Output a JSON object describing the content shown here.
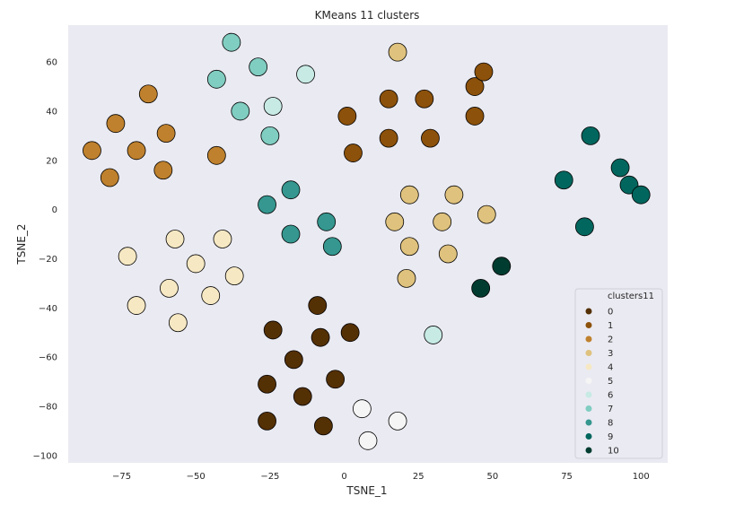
{
  "chart_data": {
    "type": "scatter",
    "title": "KMeans 11 clusters",
    "xlabel": "TSNE_1",
    "ylabel": "TSNE_2",
    "xlim": [
      -93,
      109
    ],
    "ylim": [
      -103,
      75
    ],
    "xticks": [
      -75,
      -50,
      -25,
      0,
      25,
      50,
      75,
      100
    ],
    "yticks": [
      -100,
      -80,
      -60,
      -40,
      -20,
      0,
      20,
      40,
      60
    ],
    "xtick_labels": [
      "−75",
      "−50",
      "−25",
      "0",
      "25",
      "50",
      "75",
      "100"
    ],
    "ytick_labels": [
      "−100",
      "−80",
      "−60",
      "−40",
      "−20",
      "0",
      "20",
      "40",
      "60"
    ],
    "grid": false,
    "legend": {
      "title": "clusters11",
      "position": "lower-right",
      "entries": [
        "0",
        "1",
        "2",
        "3",
        "4",
        "5",
        "6",
        "7",
        "8",
        "9",
        "10"
      ]
    },
    "colors": [
      "#543005",
      "#8c510a",
      "#bf812d",
      "#dfc27d",
      "#f6e8c3",
      "#f5f5f5",
      "#c7eae5",
      "#80cdc1",
      "#35978f",
      "#01665e",
      "#003c30"
    ],
    "series": [
      {
        "name": "0",
        "points": [
          [
            -24,
            -49
          ],
          [
            -9,
            -39
          ],
          [
            -8,
            -52
          ],
          [
            2,
            -50
          ],
          [
            -17,
            -61
          ],
          [
            -26,
            -71
          ],
          [
            -14,
            -76
          ],
          [
            -3,
            -69
          ],
          [
            -26,
            -86
          ],
          [
            -7,
            -88
          ]
        ]
      },
      {
        "name": "1",
        "points": [
          [
            1,
            38
          ],
          [
            3,
            23
          ],
          [
            15,
            45
          ],
          [
            27,
            45
          ],
          [
            15,
            29
          ],
          [
            29,
            29
          ],
          [
            44,
            50
          ],
          [
            47,
            56
          ],
          [
            44,
            38
          ]
        ]
      },
      {
        "name": "2",
        "points": [
          [
            -66,
            47
          ],
          [
            -77,
            35
          ],
          [
            -60,
            31
          ],
          [
            -85,
            24
          ],
          [
            -70,
            24
          ],
          [
            -79,
            13
          ],
          [
            -61,
            16
          ],
          [
            -43,
            22
          ]
        ]
      },
      {
        "name": "3",
        "points": [
          [
            18,
            64
          ],
          [
            22,
            6
          ],
          [
            37,
            6
          ],
          [
            17,
            -5
          ],
          [
            33,
            -5
          ],
          [
            48,
            -2
          ],
          [
            22,
            -15
          ],
          [
            35,
            -18
          ],
          [
            21,
            -28
          ]
        ]
      },
      {
        "name": "4",
        "points": [
          [
            -57,
            -12
          ],
          [
            -41,
            -12
          ],
          [
            -73,
            -19
          ],
          [
            -50,
            -22
          ],
          [
            -37,
            -27
          ],
          [
            -59,
            -32
          ],
          [
            -45,
            -35
          ],
          [
            -70,
            -39
          ],
          [
            -56,
            -46
          ]
        ]
      },
      {
        "name": "5",
        "points": [
          [
            6,
            -81
          ],
          [
            18,
            -86
          ],
          [
            8,
            -94
          ]
        ]
      },
      {
        "name": "6",
        "points": [
          [
            -13,
            55
          ],
          [
            -24,
            42
          ],
          [
            30,
            -51
          ]
        ]
      },
      {
        "name": "7",
        "points": [
          [
            -38,
            68
          ],
          [
            -29,
            58
          ],
          [
            -43,
            53
          ],
          [
            -35,
            40
          ],
          [
            -25,
            30
          ]
        ]
      },
      {
        "name": "8",
        "points": [
          [
            -18,
            8
          ],
          [
            -26,
            2
          ],
          [
            -6,
            -5
          ],
          [
            -18,
            -10
          ],
          [
            -4,
            -15
          ]
        ]
      },
      {
        "name": "9",
        "points": [
          [
            83,
            30
          ],
          [
            93,
            17
          ],
          [
            96,
            10
          ],
          [
            100,
            6
          ],
          [
            74,
            12
          ],
          [
            81,
            -7
          ]
        ]
      },
      {
        "name": "10",
        "points": [
          [
            53,
            -23
          ],
          [
            46,
            -32
          ]
        ]
      }
    ]
  }
}
